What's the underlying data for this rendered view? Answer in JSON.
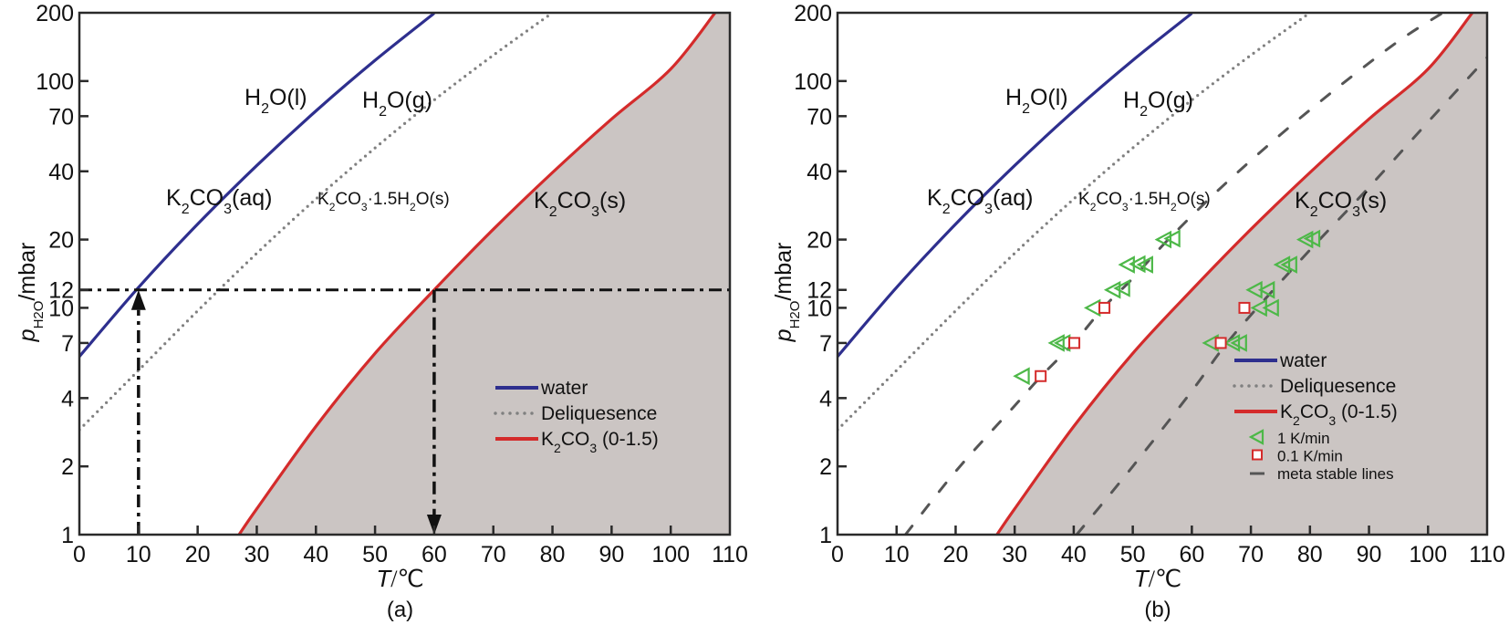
{
  "chart_data": [
    {
      "panel": "(a)",
      "type": "line",
      "xlabel": "T/℃",
      "xlabel_italic_part": "T",
      "xlabel_unit": "/℃",
      "ylabel_main": "p",
      "ylabel_sub": "H₂O",
      "ylabel_unit": "/mbar",
      "xlim": [
        0,
        110
      ],
      "ylim": [
        1,
        200
      ],
      "yscale": "log",
      "xticks": [
        0,
        10,
        20,
        30,
        40,
        50,
        60,
        70,
        80,
        90,
        100,
        110
      ],
      "yticks": [
        1,
        2,
        4,
        7,
        10,
        12,
        20,
        40,
        70,
        100,
        200
      ],
      "shaded_region": {
        "name": "K₂CO₃(s) stability region",
        "color": "#cbc5c3",
        "bounded_by": "K₂CO₃ (0-1.5)"
      },
      "series": [
        {
          "name": "water",
          "style": "solid",
          "color": "#2e2f8e",
          "x": [
            0,
            10,
            20,
            30,
            40,
            50,
            60
          ],
          "y": [
            6.1,
            12.3,
            23.4,
            42.4,
            73.8,
            123.4,
            199
          ]
        },
        {
          "name": "Deliquesence",
          "style": "dotted",
          "color": "#808080",
          "x": [
            0,
            10,
            20,
            30,
            40,
            50,
            60,
            70,
            80
          ],
          "y": [
            2.9,
            5.3,
            9.7,
            17.4,
            30.2,
            50.7,
            82.5,
            130,
            200
          ]
        },
        {
          "name": "K₂CO₃ (0-1.5)",
          "style": "solid",
          "color": "#d42b2b",
          "x": [
            27,
            30,
            40,
            50,
            60,
            70,
            80,
            90,
            100,
            107.5
          ],
          "y": [
            1,
            1.3,
            3.0,
            6.3,
            12.0,
            22.2,
            39.5,
            68,
            113,
            200
          ]
        }
      ],
      "annotations": [
        {
          "type": "dash-dot-line",
          "orientation": "horizontal",
          "y": 12
        },
        {
          "type": "dash-dot-arrow",
          "from": [
            10,
            1
          ],
          "to": [
            10,
            12
          ],
          "direction": "up"
        },
        {
          "type": "dash-dot-arrow",
          "from": [
            60,
            12
          ],
          "to": [
            60,
            1
          ],
          "direction": "down"
        }
      ],
      "region_labels": [
        {
          "text": "H₂O(l)",
          "x": 33,
          "y": 105
        },
        {
          "text": "H₂O(g)",
          "x": 56,
          "y": 100
        },
        {
          "text": "K₂CO₃(aq)",
          "x": 26,
          "y": 30
        },
        {
          "text": "K₂CO₃·1.5H₂O(s)",
          "x": 58,
          "y": 30
        },
        {
          "text": "K₂CO₃(s)",
          "x": 89,
          "y": 30
        }
      ],
      "legend": {
        "position": "lower-right",
        "entries": [
          {
            "label": "water",
            "marker": "line",
            "color": "#2e2f8e",
            "style": "solid"
          },
          {
            "label": "Deliquesence",
            "marker": "line",
            "color": "#808080",
            "style": "dotted"
          },
          {
            "label": "K₂CO₃ (0-1.5)",
            "marker": "line",
            "color": "#d42b2b",
            "style": "solid"
          }
        ]
      }
    },
    {
      "panel": "(b)",
      "type": "line",
      "xlabel": "T/℃",
      "xlabel_italic_part": "T",
      "xlabel_unit": "/℃",
      "ylabel_main": "p",
      "ylabel_sub": "H₂O",
      "ylabel_unit": "/mbar",
      "xlim": [
        0,
        110
      ],
      "ylim": [
        1,
        200
      ],
      "yscale": "log",
      "xticks": [
        0,
        10,
        20,
        30,
        40,
        50,
        60,
        70,
        80,
        90,
        100,
        110
      ],
      "yticks": [
        1,
        2,
        4,
        7,
        10,
        12,
        20,
        40,
        70,
        100,
        200
      ],
      "shaded_region": {
        "name": "K₂CO₃(s) stability region",
        "color": "#cbc5c3",
        "bounded_by": "K₂CO₃ (0-1.5)"
      },
      "series": [
        {
          "name": "water",
          "style": "solid",
          "color": "#2e2f8e",
          "x": [
            0,
            10,
            20,
            30,
            40,
            50,
            60
          ],
          "y": [
            6.1,
            12.3,
            23.4,
            42.4,
            73.8,
            123.4,
            199
          ]
        },
        {
          "name": "Deliquesence",
          "style": "dotted",
          "color": "#808080",
          "x": [
            0,
            10,
            20,
            30,
            40,
            50,
            60,
            70,
            80
          ],
          "y": [
            2.9,
            5.3,
            9.7,
            17.4,
            30.2,
            50.7,
            82.5,
            130,
            200
          ]
        },
        {
          "name": "K₂CO₃ (0-1.5)",
          "style": "solid",
          "color": "#d42b2b",
          "x": [
            27,
            30,
            40,
            50,
            60,
            70,
            80,
            90,
            100,
            107.5
          ],
          "y": [
            1,
            1.3,
            3.0,
            6.3,
            12.0,
            22.2,
            39.5,
            68,
            113,
            200
          ]
        },
        {
          "name": "meta stable lines (hydration)",
          "legend_group": "meta stable lines",
          "style": "dashed",
          "color": "#555555",
          "x": [
            11.5,
            20,
            30,
            34.5,
            40,
            45,
            50,
            56,
            65,
            75,
            85,
            95,
            102.5
          ],
          "y": [
            1,
            1.9,
            3.7,
            5,
            7,
            10,
            13.5,
            20,
            34,
            58,
            95,
            150,
            200
          ]
        },
        {
          "name": "meta stable lines (dehydration)",
          "legend_group": "meta stable lines",
          "style": "dashed",
          "color": "#555555",
          "x": [
            40.5,
            50,
            60,
            65,
            70,
            80,
            90,
            100,
            110
          ],
          "y": [
            1,
            2.0,
            4.3,
            6.5,
            9.3,
            18,
            34,
            66,
            127
          ]
        },
        {
          "name": "1 K/min",
          "style": "marker",
          "marker": "triangle-left",
          "color": "#4db848",
          "x": [
            31.3,
            37.2,
            38.2,
            43.3,
            46.7,
            48.3,
            49.1,
            50.9,
            52.2,
            55.3,
            56.8,
            63.3,
            66.9,
            68.1,
            71.5,
            73.5,
            70.7,
            72.8,
            75.4,
            76.6,
            79.3,
            80.5
          ],
          "y": [
            5,
            7,
            7,
            10,
            12,
            12.2,
            15.5,
            15.6,
            15.5,
            20,
            20.2,
            7,
            7,
            7,
            10,
            10,
            12,
            12,
            15.5,
            15.5,
            20,
            20.2
          ]
        },
        {
          "name": "0.1 K/min",
          "style": "marker",
          "marker": "square",
          "color": "#d42b2b",
          "x": [
            34.4,
            40.1,
            45.2,
            64.9,
            68.9
          ],
          "y": [
            5,
            7,
            10,
            7,
            10
          ]
        }
      ],
      "region_labels": [
        {
          "text": "H₂O(l)",
          "x": 33,
          "y": 105
        },
        {
          "text": "H₂O(g)",
          "x": 56,
          "y": 100
        },
        {
          "text": "K₂CO₃(aq)",
          "x": 26,
          "y": 30
        },
        {
          "text": "K₂CO₃·1.5H₂O(s)",
          "x": 58,
          "y": 30
        },
        {
          "text": "K₂CO₃(s)",
          "x": 89,
          "y": 30
        }
      ],
      "legend": {
        "position": "lower-right",
        "entries": [
          {
            "label": "water",
            "marker": "line",
            "color": "#2e2f8e",
            "style": "solid"
          },
          {
            "label": "Deliquesence",
            "marker": "line",
            "color": "#808080",
            "style": "dotted"
          },
          {
            "label": "K₂CO₃ (0-1.5)",
            "marker": "line",
            "color": "#d42b2b",
            "style": "solid"
          },
          {
            "label": "1 K/min",
            "marker": "triangle-left",
            "color": "#4db848"
          },
          {
            "label": "0.1 K/min",
            "marker": "square",
            "color": "#d42b2b"
          },
          {
            "label": "meta stable lines",
            "marker": "dash",
            "color": "#555555"
          }
        ]
      }
    }
  ]
}
